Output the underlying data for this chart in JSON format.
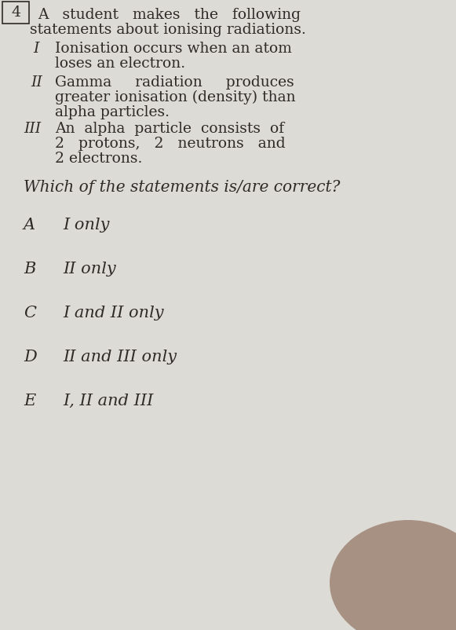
{
  "bg_color": "#c8c4be",
  "paper_color": "#dddbd6",
  "question_number": "4",
  "intro_line1": "A   student   makes   the   following",
  "intro_line2": "statements about ionising radiations.",
  "statement_I_label": "I",
  "statement_I_text1": "Ionisation occurs when an atom",
  "statement_I_text2": "loses an electron.",
  "statement_II_label": "II",
  "statement_II_text1": "Gamma     radiation     produces",
  "statement_II_text2": "greater ionisation (density) than",
  "statement_II_text3": "alpha particles.",
  "statement_III_label": "III",
  "statement_III_text1": "An  alpha  particle  consists  of",
  "statement_III_text2": "2   protons,   2   neutrons   and",
  "statement_III_text3": "2 electrons.",
  "question": "Which of the statements is/are correct?",
  "options": [
    {
      "label": "A",
      "text": "I only"
    },
    {
      "label": "B",
      "text": "II only"
    },
    {
      "label": "C",
      "text": "I and II only"
    },
    {
      "label": "D",
      "text": "II and III only"
    },
    {
      "label": "E",
      "text": "I, II and III"
    }
  ],
  "text_color": "#2e2a28",
  "font_family": "serif",
  "main_fontsize": 13.5,
  "option_fontsize": 15,
  "question_fontsize": 14.5
}
